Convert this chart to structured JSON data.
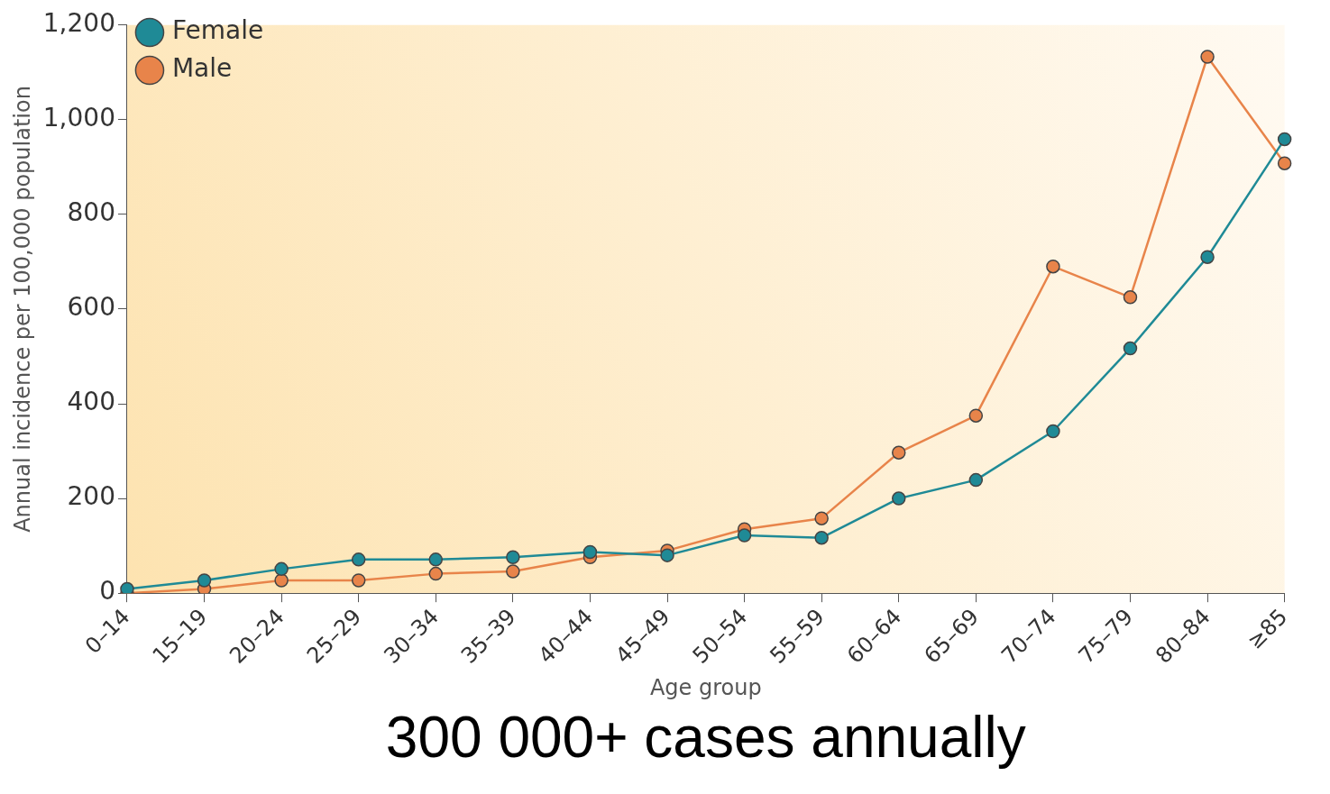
{
  "chart_data": {
    "type": "line",
    "xlabel": "Age group",
    "ylabel": "Annual incidence per 100,000 population",
    "categories": [
      "0–14",
      "15–19",
      "20–24",
      "25–29",
      "30–34",
      "35–39",
      "40–44",
      "45–49",
      "50–54",
      "55–59",
      "60–64",
      "65–69",
      "70–74",
      "75–79",
      "80–84",
      "≥85"
    ],
    "series": [
      {
        "name": "Male",
        "color": "#e8844a",
        "values": [
          0,
          9,
          27,
          27,
          41,
          46,
          76,
          90,
          135,
          158,
          297,
          375,
          690,
          625,
          1133,
          908
        ]
      },
      {
        "name": "Female",
        "color": "#1f8a96",
        "values": [
          9,
          27,
          51,
          71,
          71,
          76,
          87,
          80,
          122,
          117,
          200,
          239,
          342,
          517,
          710,
          959
        ]
      }
    ],
    "ylim": [
      0,
      1200
    ],
    "yticks": [
      0,
      {
        "value": 200,
        "label": "200"
      },
      {
        "value": 400,
        "label": "400"
      },
      {
        "value": 600,
        "label": "600"
      },
      {
        "value": 800,
        "label": "800"
      },
      {
        "value": 1000,
        "label": "1,000"
      },
      {
        "value": 1200,
        "label": "1,200"
      }
    ],
    "grid": false,
    "legend": "top left",
    "marker": "circle",
    "line_style": "solid",
    "annotations": [
      "300 000+ cases annually"
    ]
  }
}
